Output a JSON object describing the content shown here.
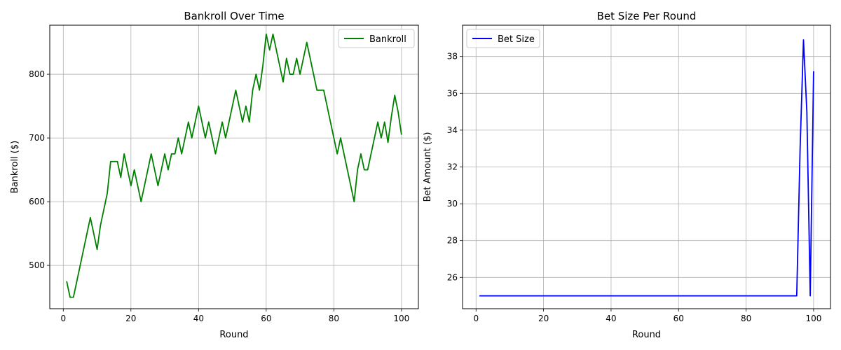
{
  "chart_data": [
    {
      "type": "line",
      "title": "Bankroll Over Time",
      "xlabel": "Round",
      "ylabel": "Bankroll ($)",
      "xlim": [
        -4,
        105
      ],
      "ylim": [
        432,
        877
      ],
      "xticks": [
        0,
        20,
        40,
        60,
        80,
        100
      ],
      "yticks": [
        500,
        600,
        700,
        800
      ],
      "grid": true,
      "legend_position": "upper right",
      "series": [
        {
          "name": "Bankroll",
          "color": "#008000",
          "x": [
            1,
            2,
            3,
            4,
            5,
            6,
            7,
            8,
            9,
            10,
            11,
            12,
            13,
            14,
            15,
            16,
            17,
            18,
            19,
            20,
            21,
            22,
            23,
            24,
            25,
            26,
            27,
            28,
            29,
            30,
            31,
            32,
            33,
            34,
            35,
            36,
            37,
            38,
            39,
            40,
            41,
            42,
            43,
            44,
            45,
            46,
            47,
            48,
            49,
            50,
            51,
            52,
            53,
            54,
            55,
            56,
            57,
            58,
            59,
            60,
            61,
            62,
            63,
            64,
            65,
            66,
            67,
            68,
            69,
            70,
            71,
            72,
            73,
            74,
            75,
            76,
            77,
            78,
            79,
            80,
            81,
            82,
            83,
            84,
            85,
            86,
            87,
            88,
            89,
            90,
            91,
            92,
            93,
            94,
            95,
            96,
            97,
            98,
            99,
            100
          ],
          "values": [
            475,
            450,
            450,
            475,
            500,
            525,
            550,
            575,
            550,
            525,
            563,
            588,
            613,
            663,
            663,
            663,
            638,
            675,
            650,
            625,
            650,
            625,
            600,
            625,
            650,
            675,
            650,
            625,
            650,
            675,
            650,
            675,
            675,
            700,
            675,
            700,
            725,
            700,
            725,
            750,
            725,
            700,
            725,
            700,
            675,
            700,
            725,
            700,
            725,
            750,
            775,
            750,
            725,
            750,
            725,
            775,
            800,
            775,
            813,
            863,
            838,
            863,
            838,
            813,
            788,
            825,
            800,
            800,
            825,
            800,
            825,
            850,
            825,
            800,
            775,
            775,
            775,
            750,
            725,
            700,
            675,
            700,
            675,
            650,
            625,
            600,
            650,
            675,
            650,
            650,
            675,
            700,
            725,
            700,
            725,
            693,
            733,
            767,
            741,
            705
          ]
        }
      ]
    },
    {
      "type": "line",
      "title": "Bet Size Per Round",
      "xlabel": "Round",
      "ylabel": "Bet Amount ($)",
      "xlim": [
        -4,
        105
      ],
      "ylim": [
        24.3,
        39.7
      ],
      "xticks": [
        0,
        20,
        40,
        60,
        80,
        100
      ],
      "yticks": [
        26,
        28,
        30,
        32,
        34,
        36,
        38
      ],
      "grid": true,
      "legend_position": "upper left",
      "series": [
        {
          "name": "Bet Size",
          "color": "#0000ff",
          "x": [
            1,
            2,
            3,
            4,
            5,
            6,
            7,
            8,
            9,
            10,
            11,
            12,
            13,
            14,
            15,
            16,
            17,
            18,
            19,
            20,
            21,
            22,
            23,
            24,
            25,
            26,
            27,
            28,
            29,
            30,
            31,
            32,
            33,
            34,
            35,
            36,
            37,
            38,
            39,
            40,
            41,
            42,
            43,
            44,
            45,
            46,
            47,
            48,
            49,
            50,
            51,
            52,
            53,
            54,
            55,
            56,
            57,
            58,
            59,
            60,
            61,
            62,
            63,
            64,
            65,
            66,
            67,
            68,
            69,
            70,
            71,
            72,
            73,
            74,
            75,
            76,
            77,
            78,
            79,
            80,
            81,
            82,
            83,
            84,
            85,
            86,
            87,
            88,
            89,
            90,
            91,
            92,
            93,
            94,
            95,
            96,
            97,
            98,
            99,
            100
          ],
          "values": [
            25,
            25,
            25,
            25,
            25,
            25,
            25,
            25,
            25,
            25,
            25,
            25,
            25,
            25,
            25,
            25,
            25,
            25,
            25,
            25,
            25,
            25,
            25,
            25,
            25,
            25,
            25,
            25,
            25,
            25,
            25,
            25,
            25,
            25,
            25,
            25,
            25,
            25,
            25,
            25,
            25,
            25,
            25,
            25,
            25,
            25,
            25,
            25,
            25,
            25,
            25,
            25,
            25,
            25,
            25,
            25,
            25,
            25,
            25,
            25,
            25,
            25,
            25,
            25,
            25,
            25,
            25,
            25,
            25,
            25,
            25,
            25,
            25,
            25,
            25,
            25,
            25,
            25,
            25,
            25,
            25,
            25,
            25,
            25,
            25,
            25,
            25,
            25,
            25,
            25,
            25,
            25,
            25,
            25,
            25,
            33,
            38.9,
            35,
            25,
            37.2
          ]
        }
      ]
    }
  ]
}
